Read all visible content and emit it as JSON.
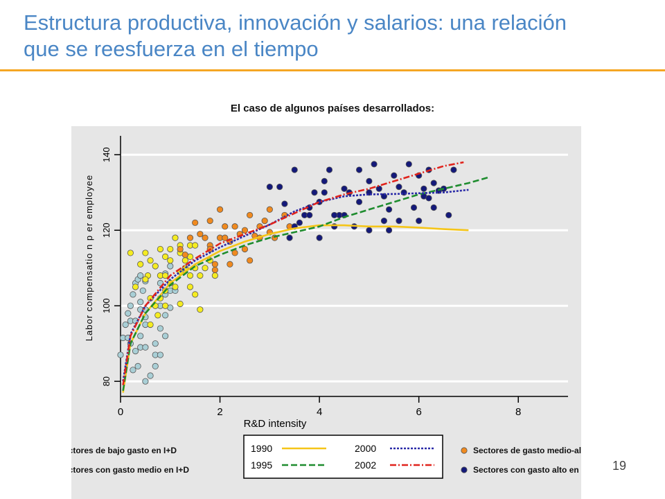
{
  "slide": {
    "title_line1": "Estructura productiva, innovación  y salarios: una relación",
    "title_line2": "que se reesfuerza en el tiempo",
    "subtitle": "El caso de algunos países desarrollados:",
    "page_number": "19",
    "title_color": "#4a86c5",
    "rule_color": "#f5a623"
  },
  "legend": {
    "low": "Sectores de bajo gasto en I+D",
    "medium": "Sectores con gasto medio en I+D",
    "medium_high": "Sectores de gasto medio-alto  en I+D",
    "high": "Sectores con gasto alto en I+D",
    "years": [
      "1990",
      "2000",
      "1995",
      "2002"
    ]
  },
  "chart_data": {
    "type": "scatter",
    "xlabel": "R&D intensity",
    "ylabel": "Labor compensatio n p er employee",
    "xlim": [
      0,
      9
    ],
    "ylim": [
      76,
      145
    ],
    "xticks": [
      "0",
      "2",
      "4",
      "6",
      "8"
    ],
    "yticks": [
      "80",
      "100",
      "120",
      "140"
    ],
    "xtick_values": [
      0,
      2,
      4,
      6,
      8
    ],
    "ytick_values": [
      80,
      100,
      120,
      140
    ],
    "grid": true,
    "scatter_series": [
      {
        "name": "Sectores de bajo gasto en I+D",
        "color": "#a9cfd6",
        "points": [
          [
            0.0,
            87
          ],
          [
            0.05,
            91.5
          ],
          [
            0.15,
            91.5
          ],
          [
            0.2,
            100
          ],
          [
            0.15,
            98
          ],
          [
            0.2,
            96
          ],
          [
            0.3,
            96
          ],
          [
            0.25,
            103
          ],
          [
            0.3,
            106
          ],
          [
            0.35,
            107
          ],
          [
            0.4,
            108
          ],
          [
            0.5,
            106.5
          ],
          [
            0.45,
            104
          ],
          [
            0.4,
            101
          ],
          [
            0.4,
            99
          ],
          [
            0.5,
            99
          ],
          [
            0.5,
            97
          ],
          [
            0.5,
            95
          ],
          [
            0.4,
            92
          ],
          [
            0.3,
            88
          ],
          [
            0.35,
            84
          ],
          [
            0.4,
            89
          ],
          [
            0.5,
            89
          ],
          [
            0.25,
            83
          ],
          [
            0.5,
            80
          ],
          [
            0.6,
            81.5
          ],
          [
            0.7,
            84
          ],
          [
            0.7,
            87
          ],
          [
            0.7,
            90
          ],
          [
            0.8,
            94
          ],
          [
            0.8,
            100
          ],
          [
            0.9,
            97.5
          ],
          [
            1.0,
            99.5
          ],
          [
            0.9,
            103
          ],
          [
            1.0,
            104
          ],
          [
            1.1,
            104
          ],
          [
            0.8,
            106
          ],
          [
            0.9,
            108.5
          ],
          [
            1.0,
            110.5
          ],
          [
            0.9,
            92
          ],
          [
            0.8,
            87
          ],
          [
            0.2,
            90
          ],
          [
            0.1,
            95
          ]
        ]
      },
      {
        "name": "Sectores con gasto medio en I+D",
        "color": "#f5ec21",
        "points": [
          [
            0.5,
            114
          ],
          [
            0.6,
            112
          ],
          [
            0.7,
            110.5
          ],
          [
            0.55,
            108
          ],
          [
            0.5,
            107
          ],
          [
            0.3,
            105
          ],
          [
            0.6,
            102
          ],
          [
            0.7,
            100
          ],
          [
            0.75,
            97.5
          ],
          [
            0.6,
            95
          ],
          [
            0.8,
            108
          ],
          [
            0.9,
            108
          ],
          [
            1.0,
            106
          ],
          [
            0.9,
            104
          ],
          [
            0.8,
            102
          ],
          [
            0.9,
            100
          ],
          [
            0.8,
            115
          ],
          [
            0.9,
            113
          ],
          [
            1.0,
            112
          ],
          [
            1.1,
            118
          ],
          [
            1.2,
            116
          ],
          [
            1.2,
            114
          ],
          [
            1.3,
            112
          ],
          [
            1.3,
            110
          ],
          [
            1.4,
            116
          ],
          [
            1.4,
            113
          ],
          [
            1.5,
            116
          ],
          [
            1.4,
            108
          ],
          [
            1.4,
            105
          ],
          [
            1.5,
            103
          ],
          [
            1.6,
            99
          ],
          [
            1.6,
            108
          ],
          [
            1.8,
            112
          ],
          [
            1.7,
            110
          ],
          [
            1.9,
            108
          ],
          [
            1.2,
            109
          ],
          [
            1.1,
            105
          ],
          [
            1.2,
            100.5
          ],
          [
            0.4,
            111
          ],
          [
            0.2,
            114
          ],
          [
            1.5,
            110
          ],
          [
            1.0,
            115
          ]
        ]
      },
      {
        "name": "Sectores de gasto medio-alto  en I+D",
        "color": "#f08a1f",
        "points": [
          [
            1.2,
            115
          ],
          [
            1.3,
            113.5
          ],
          [
            1.4,
            118
          ],
          [
            1.5,
            122
          ],
          [
            1.6,
            119
          ],
          [
            1.7,
            118
          ],
          [
            1.8,
            122.5
          ],
          [
            1.8,
            116
          ],
          [
            2.0,
            118
          ],
          [
            2.0,
            125.5
          ],
          [
            2.1,
            118
          ],
          [
            2.1,
            121
          ],
          [
            2.2,
            117
          ],
          [
            2.3,
            121
          ],
          [
            2.3,
            114
          ],
          [
            2.4,
            119
          ],
          [
            2.5,
            120
          ],
          [
            2.6,
            124
          ],
          [
            2.6,
            112
          ],
          [
            2.2,
            111
          ],
          [
            2.7,
            118.5
          ],
          [
            2.8,
            121
          ],
          [
            2.9,
            122.5
          ],
          [
            3.0,
            125.5
          ],
          [
            3.0,
            119.5
          ],
          [
            3.1,
            118
          ],
          [
            3.3,
            124
          ],
          [
            3.4,
            121
          ],
          [
            1.9,
            111
          ],
          [
            1.9,
            109.5
          ],
          [
            2.8,
            118
          ],
          [
            1.8,
            115
          ],
          [
            2.5,
            115
          ]
        ]
      },
      {
        "name": "Sectores con gasto alto en I+D",
        "color": "#14197a",
        "points": [
          [
            3.0,
            131.5
          ],
          [
            3.2,
            131.5
          ],
          [
            3.5,
            136
          ],
          [
            3.7,
            124
          ],
          [
            3.8,
            124
          ],
          [
            3.9,
            130
          ],
          [
            4.0,
            127.5
          ],
          [
            4.1,
            133
          ],
          [
            4.1,
            130
          ],
          [
            4.2,
            136
          ],
          [
            4.3,
            121
          ],
          [
            4.4,
            124
          ],
          [
            4.5,
            131
          ],
          [
            4.5,
            124
          ],
          [
            4.6,
            130
          ],
          [
            4.7,
            121
          ],
          [
            4.8,
            136
          ],
          [
            5.0,
            130
          ],
          [
            4.8,
            127.5
          ],
          [
            5.0,
            133
          ],
          [
            5.1,
            137.5
          ],
          [
            5.2,
            131
          ],
          [
            5.3,
            129
          ],
          [
            5.4,
            125.5
          ],
          [
            5.5,
            134.5
          ],
          [
            5.6,
            131.5
          ],
          [
            5.6,
            122.5
          ],
          [
            5.7,
            130
          ],
          [
            5.8,
            137.5
          ],
          [
            5.9,
            126
          ],
          [
            6.0,
            134.5
          ],
          [
            6.1,
            129
          ],
          [
            6.1,
            131
          ],
          [
            6.2,
            128.5
          ],
          [
            6.2,
            136
          ],
          [
            6.3,
            132.5
          ],
          [
            6.3,
            126
          ],
          [
            6.4,
            130.5
          ],
          [
            6.5,
            131
          ],
          [
            6.6,
            124
          ],
          [
            6.7,
            136
          ],
          [
            3.4,
            118
          ],
          [
            3.6,
            122
          ],
          [
            5.0,
            120
          ],
          [
            5.4,
            120
          ],
          [
            4.0,
            118
          ],
          [
            3.5,
            121
          ],
          [
            3.8,
            126
          ],
          [
            5.3,
            122.5
          ],
          [
            6.0,
            122.5
          ],
          [
            4.3,
            124
          ],
          [
            3.3,
            127
          ]
        ]
      }
    ],
    "line_series": [
      {
        "name": "1990",
        "color": "#f5c518",
        "style": "solid",
        "x": [
          0.05,
          0.2,
          0.5,
          1,
          1.5,
          2,
          2.5,
          3,
          3.5,
          4,
          4.5,
          5,
          5.5,
          6,
          6.5,
          7
        ],
        "y": [
          77,
          90,
          98,
          106,
          111,
          114.5,
          117,
          119,
          120.5,
          121.3,
          121.3,
          121,
          121,
          120.7,
          120.3,
          120
        ]
      },
      {
        "name": "1995",
        "color": "#1e8c2e",
        "style": "dashed",
        "x": [
          0.05,
          0.2,
          0.5,
          1,
          1.5,
          2,
          2.5,
          3,
          3.5,
          4,
          4.5,
          5,
          5.5,
          6,
          6.5,
          7,
          7.4
        ],
        "y": [
          77.5,
          90,
          98,
          105.5,
          110.5,
          113.5,
          116,
          118,
          119.5,
          121,
          123.5,
          125.5,
          127.5,
          129.5,
          131,
          132.5,
          134
        ]
      },
      {
        "name": "2000",
        "color": "#2b2ba8",
        "style": "dotted",
        "x": [
          0.05,
          0.2,
          0.5,
          1,
          1.5,
          2,
          2.5,
          3,
          3.5,
          4,
          4.5,
          5,
          5.5,
          6,
          6.5,
          7
        ],
        "y": [
          80,
          92.5,
          100,
          107,
          112,
          115.5,
          118.5,
          121.5,
          125,
          127.5,
          129,
          129.5,
          129.6,
          129.8,
          130,
          130.7
        ]
      },
      {
        "name": "2002",
        "color": "#e0231c",
        "style": "dashdot",
        "x": [
          0.05,
          0.2,
          0.5,
          1,
          1.5,
          2,
          2.5,
          3,
          3.5,
          4,
          4.5,
          5,
          5.5,
          6,
          6.5,
          6.9
        ],
        "y": [
          79,
          92,
          100,
          108,
          112.5,
          116.5,
          119,
          121.5,
          124.5,
          127.5,
          129.5,
          131,
          133,
          135,
          137,
          138
        ]
      }
    ]
  }
}
